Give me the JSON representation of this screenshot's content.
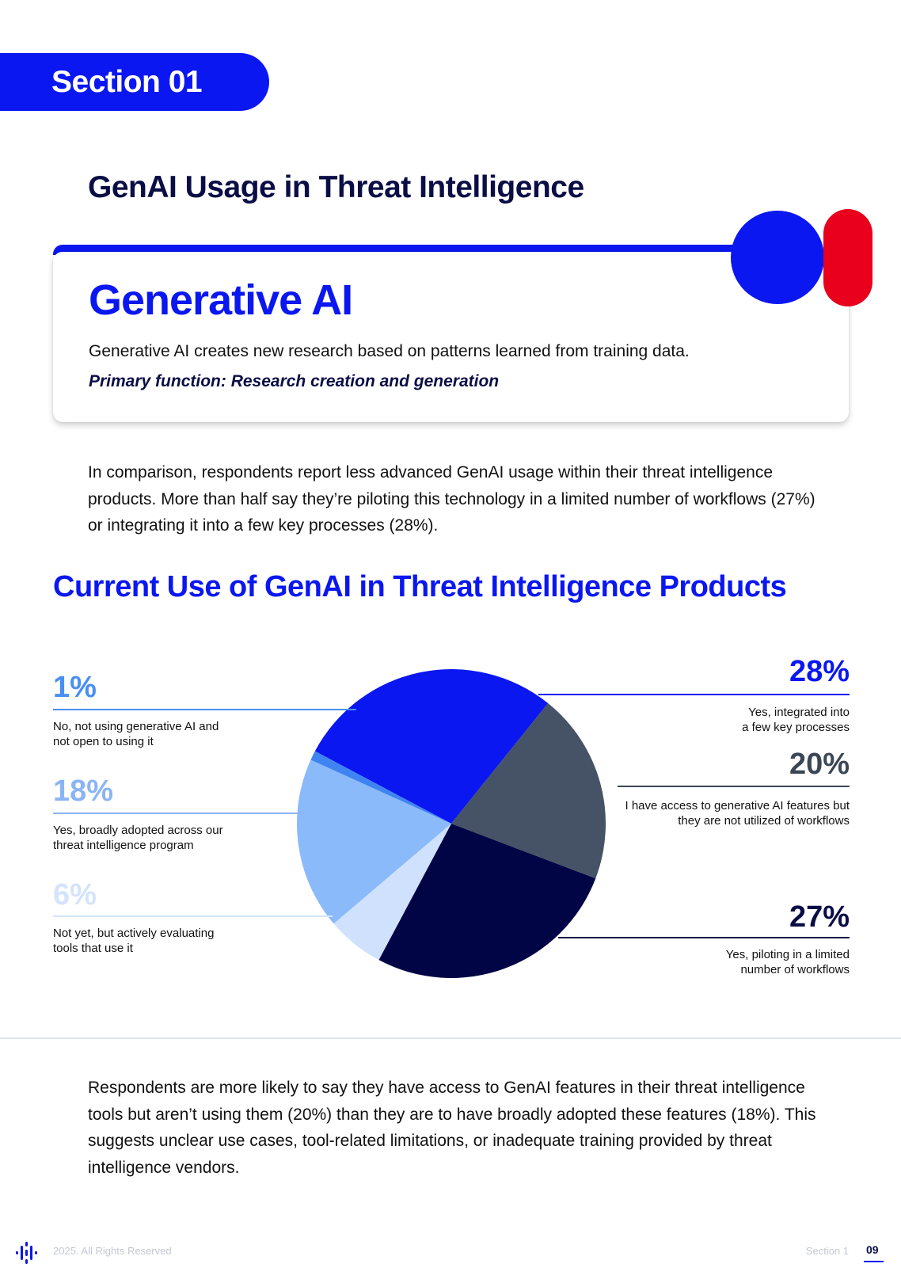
{
  "section": {
    "label": "Section 01"
  },
  "page_heading": "GenAI Usage in Threat Intelligence",
  "card": {
    "title": "Generative AI",
    "description": "Generative AI creates new research based on patterns learned from training data.",
    "primary_function": "Primary function: Research creation and generation"
  },
  "intro_paragraph": "In comparison, respondents report less advanced GenAI usage within their threat intelligence products. More than half say they’re piloting this technology in a limited number of workflows (27%) or integrating it into a few key processes (28%).",
  "closing_paragraph": "Respondents are more likely to say they have access to GenAI features in their threat intelligence tools but aren’t using them (20%) than they are to have broadly adopted these features (18%). This suggests unclear use cases, tool-related limitations, or inadequate training provided by threat intelligence vendors.",
  "footer": {
    "copyright": "2025. All Rights Reserved",
    "section": "Section 1",
    "page": "09"
  },
  "chart_data": {
    "type": "pie",
    "title": "Current Use of GenAI in Threat Intelligence Products",
    "slices": [
      {
        "label": "Yes, integrated into a few key processes",
        "value": 28,
        "display": "28%",
        "color": "#0a17f0",
        "label_color": "#0a17f0",
        "side": "right"
      },
      {
        "label": "I have access to generative AI features but they are not utilized of workflows",
        "value": 20,
        "display": "20%",
        "color": "#465366",
        "label_color": "#3b4656",
        "side": "right"
      },
      {
        "label": "Yes, piloting in a limited number of workflows",
        "value": 27,
        "display": "27%",
        "color": "#020545",
        "label_color": "#0b0e45",
        "side": "right"
      },
      {
        "label": "Not yet, but actively evaluating tools that use it",
        "value": 6,
        "display": "6%",
        "color": "#cfe1fd",
        "label_color": "#d3e4fb",
        "side": "left"
      },
      {
        "label": "Yes, broadly adopted across our threat intelligence program",
        "value": 18,
        "display": "18%",
        "color": "#8bbafa",
        "label_color": "#8bb4f4",
        "side": "left"
      },
      {
        "label": "No, not using generative AI and not open to using it",
        "value": 1,
        "display": "1%",
        "color": "#3f84f2",
        "label_color": "#4a8ff2",
        "side": "left"
      }
    ]
  }
}
